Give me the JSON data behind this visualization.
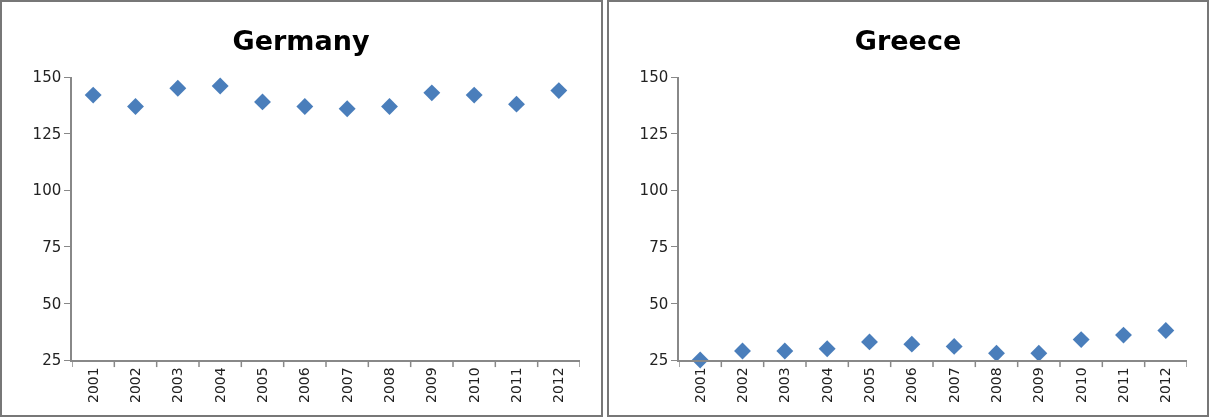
{
  "chart_data": [
    {
      "type": "scatter",
      "title": "Germany",
      "categories": [
        "2001",
        "2002",
        "2003",
        "2004",
        "2005",
        "2006",
        "2007",
        "2008",
        "2009",
        "2010",
        "2011",
        "2012"
      ],
      "values": [
        142,
        137,
        145,
        146,
        139,
        137,
        136,
        137,
        143,
        142,
        138,
        144
      ],
      "color": "#4a7ebb",
      "marker": "diamond",
      "grid": false,
      "legend": false,
      "ylim": [
        25,
        150
      ],
      "yticks": [
        25,
        50,
        75,
        100,
        125,
        150
      ]
    },
    {
      "type": "scatter",
      "title": "Greece",
      "categories": [
        "2001",
        "2002",
        "2003",
        "2004",
        "2005",
        "2006",
        "2007",
        "2008",
        "2009",
        "2010",
        "2011",
        "2012"
      ],
      "values": [
        25,
        29,
        29,
        30,
        33,
        32,
        31,
        28,
        28,
        34,
        36,
        38
      ],
      "color": "#4a7ebb",
      "marker": "diamond",
      "grid": false,
      "legend": false,
      "ylim": [
        25,
        150
      ],
      "yticks": [
        25,
        50,
        75,
        100,
        125,
        150
      ]
    }
  ]
}
